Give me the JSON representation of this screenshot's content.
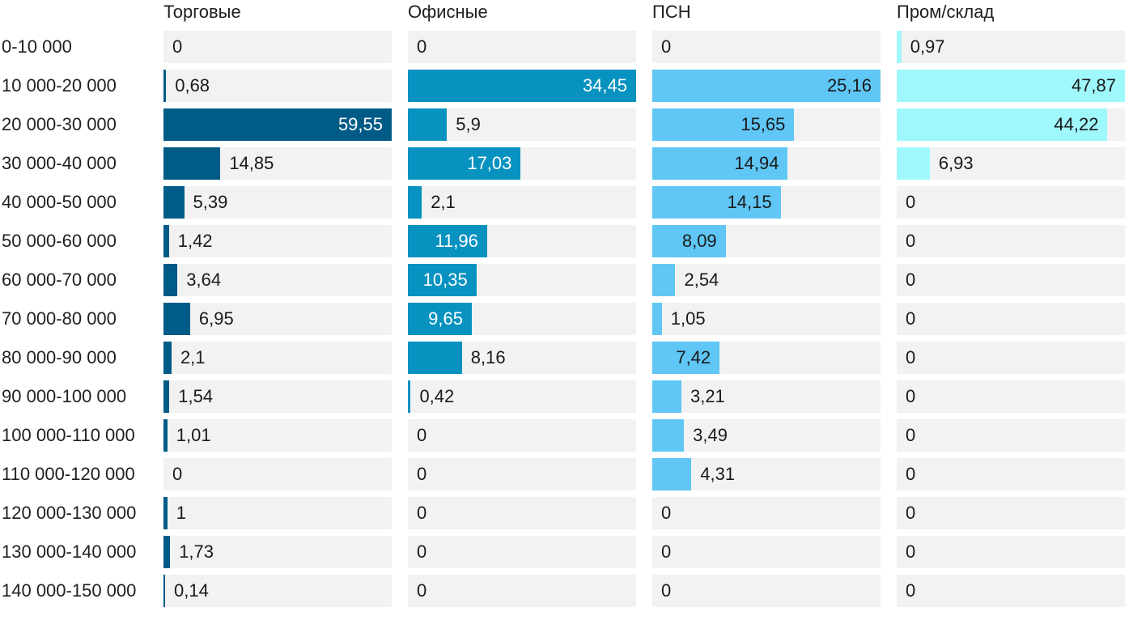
{
  "chart_data": {
    "type": "bar",
    "categories": [
      "0-10 000",
      "10 000-20 000",
      "20 000-30 000",
      "30 000-40 000",
      "40 000-50 000",
      "50 000-60 000",
      "60 000-70 000",
      "70 000-80 000",
      "80 000-90 000",
      "90 000-100 000",
      "100 000-110 000",
      "110 000-120 000",
      "120 000-130 000",
      "130 000-140 000",
      "140 000-150 000"
    ],
    "series": [
      {
        "name": "Торговые",
        "color": "#005b86",
        "values": [
          0,
          0.68,
          59.55,
          14.85,
          5.39,
          1.42,
          3.64,
          6.95,
          2.1,
          1.54,
          1.01,
          0,
          1,
          1.73,
          0.14
        ],
        "labels": [
          "0",
          "0,68",
          "59,55",
          "14,85",
          "5,39",
          "1,42",
          "3,64",
          "6,95",
          "2,1",
          "1,54",
          "1,01",
          "0",
          "1",
          "1,73",
          "0,14"
        ]
      },
      {
        "name": "Офисные",
        "color": "#0892c0",
        "values": [
          0,
          34.45,
          5.9,
          17.03,
          2.1,
          11.96,
          10.35,
          9.65,
          8.16,
          0.42,
          0,
          0,
          0,
          0,
          0
        ],
        "labels": [
          "0",
          "34,45",
          "5,9",
          "17,03",
          "2,1",
          "11,96",
          "10,35",
          "9,65",
          "8,16",
          "0,42",
          "0",
          "0",
          "0",
          "0",
          "0"
        ]
      },
      {
        "name": "ПСН",
        "color": "#5fc6f5",
        "values": [
          0,
          25.16,
          15.65,
          14.94,
          14.15,
          8.09,
          2.54,
          1.05,
          7.42,
          3.21,
          3.49,
          4.31,
          0,
          0,
          0
        ],
        "labels": [
          "0",
          "25,16",
          "15,65",
          "14,94",
          "14,15",
          "8,09",
          "2,54",
          "1,05",
          "7,42",
          "3,21",
          "3,49",
          "4,31",
          "0",
          "0",
          "0"
        ]
      },
      {
        "name": "Пром/склад",
        "color": "#9ff8fc",
        "values": [
          0.97,
          47.87,
          44.22,
          6.93,
          0,
          0,
          0,
          0,
          0,
          0,
          0,
          0,
          0,
          0,
          0
        ],
        "labels": [
          "0,97",
          "47,87",
          "44,22",
          "6,93",
          "0",
          "0",
          "0",
          "0",
          "0",
          "0",
          "0",
          "0",
          "0",
          "0",
          "0"
        ]
      }
    ]
  }
}
